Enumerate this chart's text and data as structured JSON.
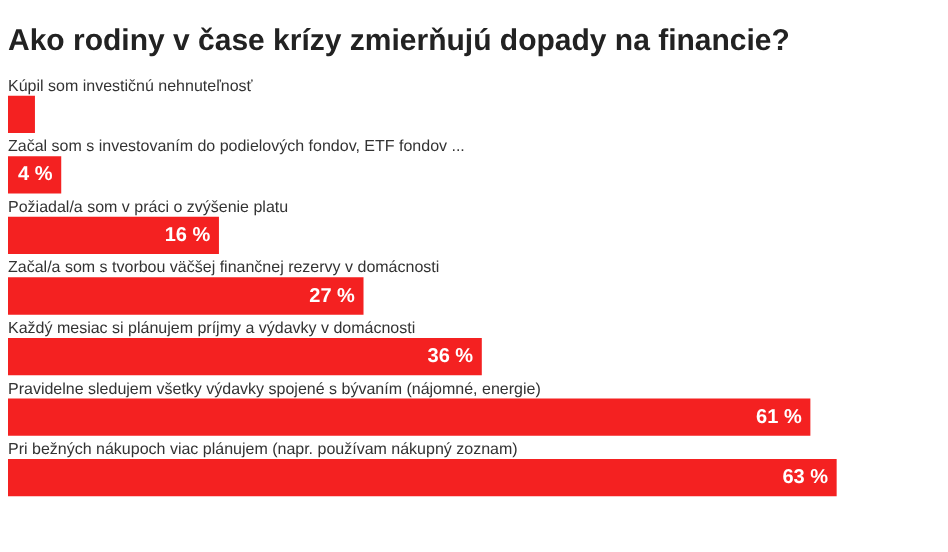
{
  "chart_data": {
    "type": "bar",
    "orientation": "horizontal",
    "title": "Ako rodiny v čase krízy zmierňujú dopady na financie?",
    "categories": [
      "Kúpil som investičnú nehnuteľnosť",
      "Začal som s investovaním do podielových fondov, ETF fondov ...",
      "Požiadal/a som v práci o zvýšenie platu",
      "Začal/a som s tvorbou väčšej finančnej rezervy v domácnosti",
      "Každý mesiac si plánujem príjmy a výdavky v domácnosti",
      "Pravidelne sledujem všetky výdavky spojené s bývaním (nájomné, energie)",
      "Pri bežných nákupoch viac plánujem (napr. používam nákupný zoznam)"
    ],
    "values": [
      2,
      4,
      16,
      27,
      36,
      61,
      63
    ],
    "value_labels": [
      null,
      "4 %",
      "16 %",
      "27 %",
      "36 %",
      "61 %",
      "63 %"
    ],
    "color": "#f42121"
  }
}
